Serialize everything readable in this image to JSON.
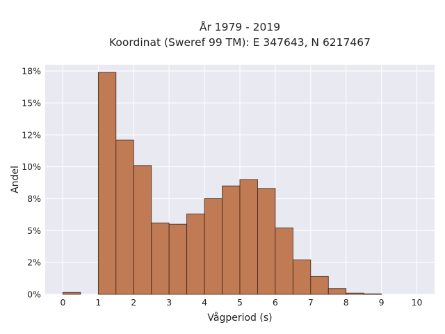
{
  "chart_data": {
    "type": "bar",
    "title": "År 1979 - 2019",
    "subtitle": "Koordinat (Sweref 99 TM): E 347643, N 6217467",
    "xlabel": "Vågperiod (s)",
    "ylabel": "Andel",
    "xlim": [
      -0.5,
      10.5
    ],
    "ylim": [
      0,
      18
    ],
    "x_ticks": [
      0,
      1,
      2,
      3,
      4,
      5,
      6,
      7,
      8,
      9,
      10
    ],
    "y_ticks": [
      0,
      2.5,
      5,
      7.5,
      10,
      12.5,
      15,
      17.5
    ],
    "y_tick_labels": [
      "0%",
      "2%",
      "5%",
      "8%",
      "10%",
      "12%",
      "15%",
      "18%"
    ],
    "bin_width": 0.5,
    "bins": [
      {
        "x0": 0.0,
        "value": 0.15
      },
      {
        "x0": 0.5,
        "value": 0.0
      },
      {
        "x0": 1.0,
        "value": 17.4
      },
      {
        "x0": 1.5,
        "value": 12.1
      },
      {
        "x0": 2.0,
        "value": 10.1
      },
      {
        "x0": 2.5,
        "value": 5.6
      },
      {
        "x0": 3.0,
        "value": 5.5
      },
      {
        "x0": 3.5,
        "value": 6.3
      },
      {
        "x0": 4.0,
        "value": 7.5
      },
      {
        "x0": 4.5,
        "value": 8.5
      },
      {
        "x0": 5.0,
        "value": 9.0
      },
      {
        "x0": 5.5,
        "value": 8.3
      },
      {
        "x0": 6.0,
        "value": 5.2
      },
      {
        "x0": 6.5,
        "value": 2.7
      },
      {
        "x0": 7.0,
        "value": 1.4
      },
      {
        "x0": 7.5,
        "value": 0.45
      },
      {
        "x0": 8.0,
        "value": 0.1
      },
      {
        "x0": 8.5,
        "value": 0.04
      }
    ],
    "grid": true,
    "colors": {
      "bar_fill": "#c07a54",
      "bar_edge": "#3a2418",
      "plot_background": "#e9e9f1",
      "grid": "#ffffff"
    }
  }
}
